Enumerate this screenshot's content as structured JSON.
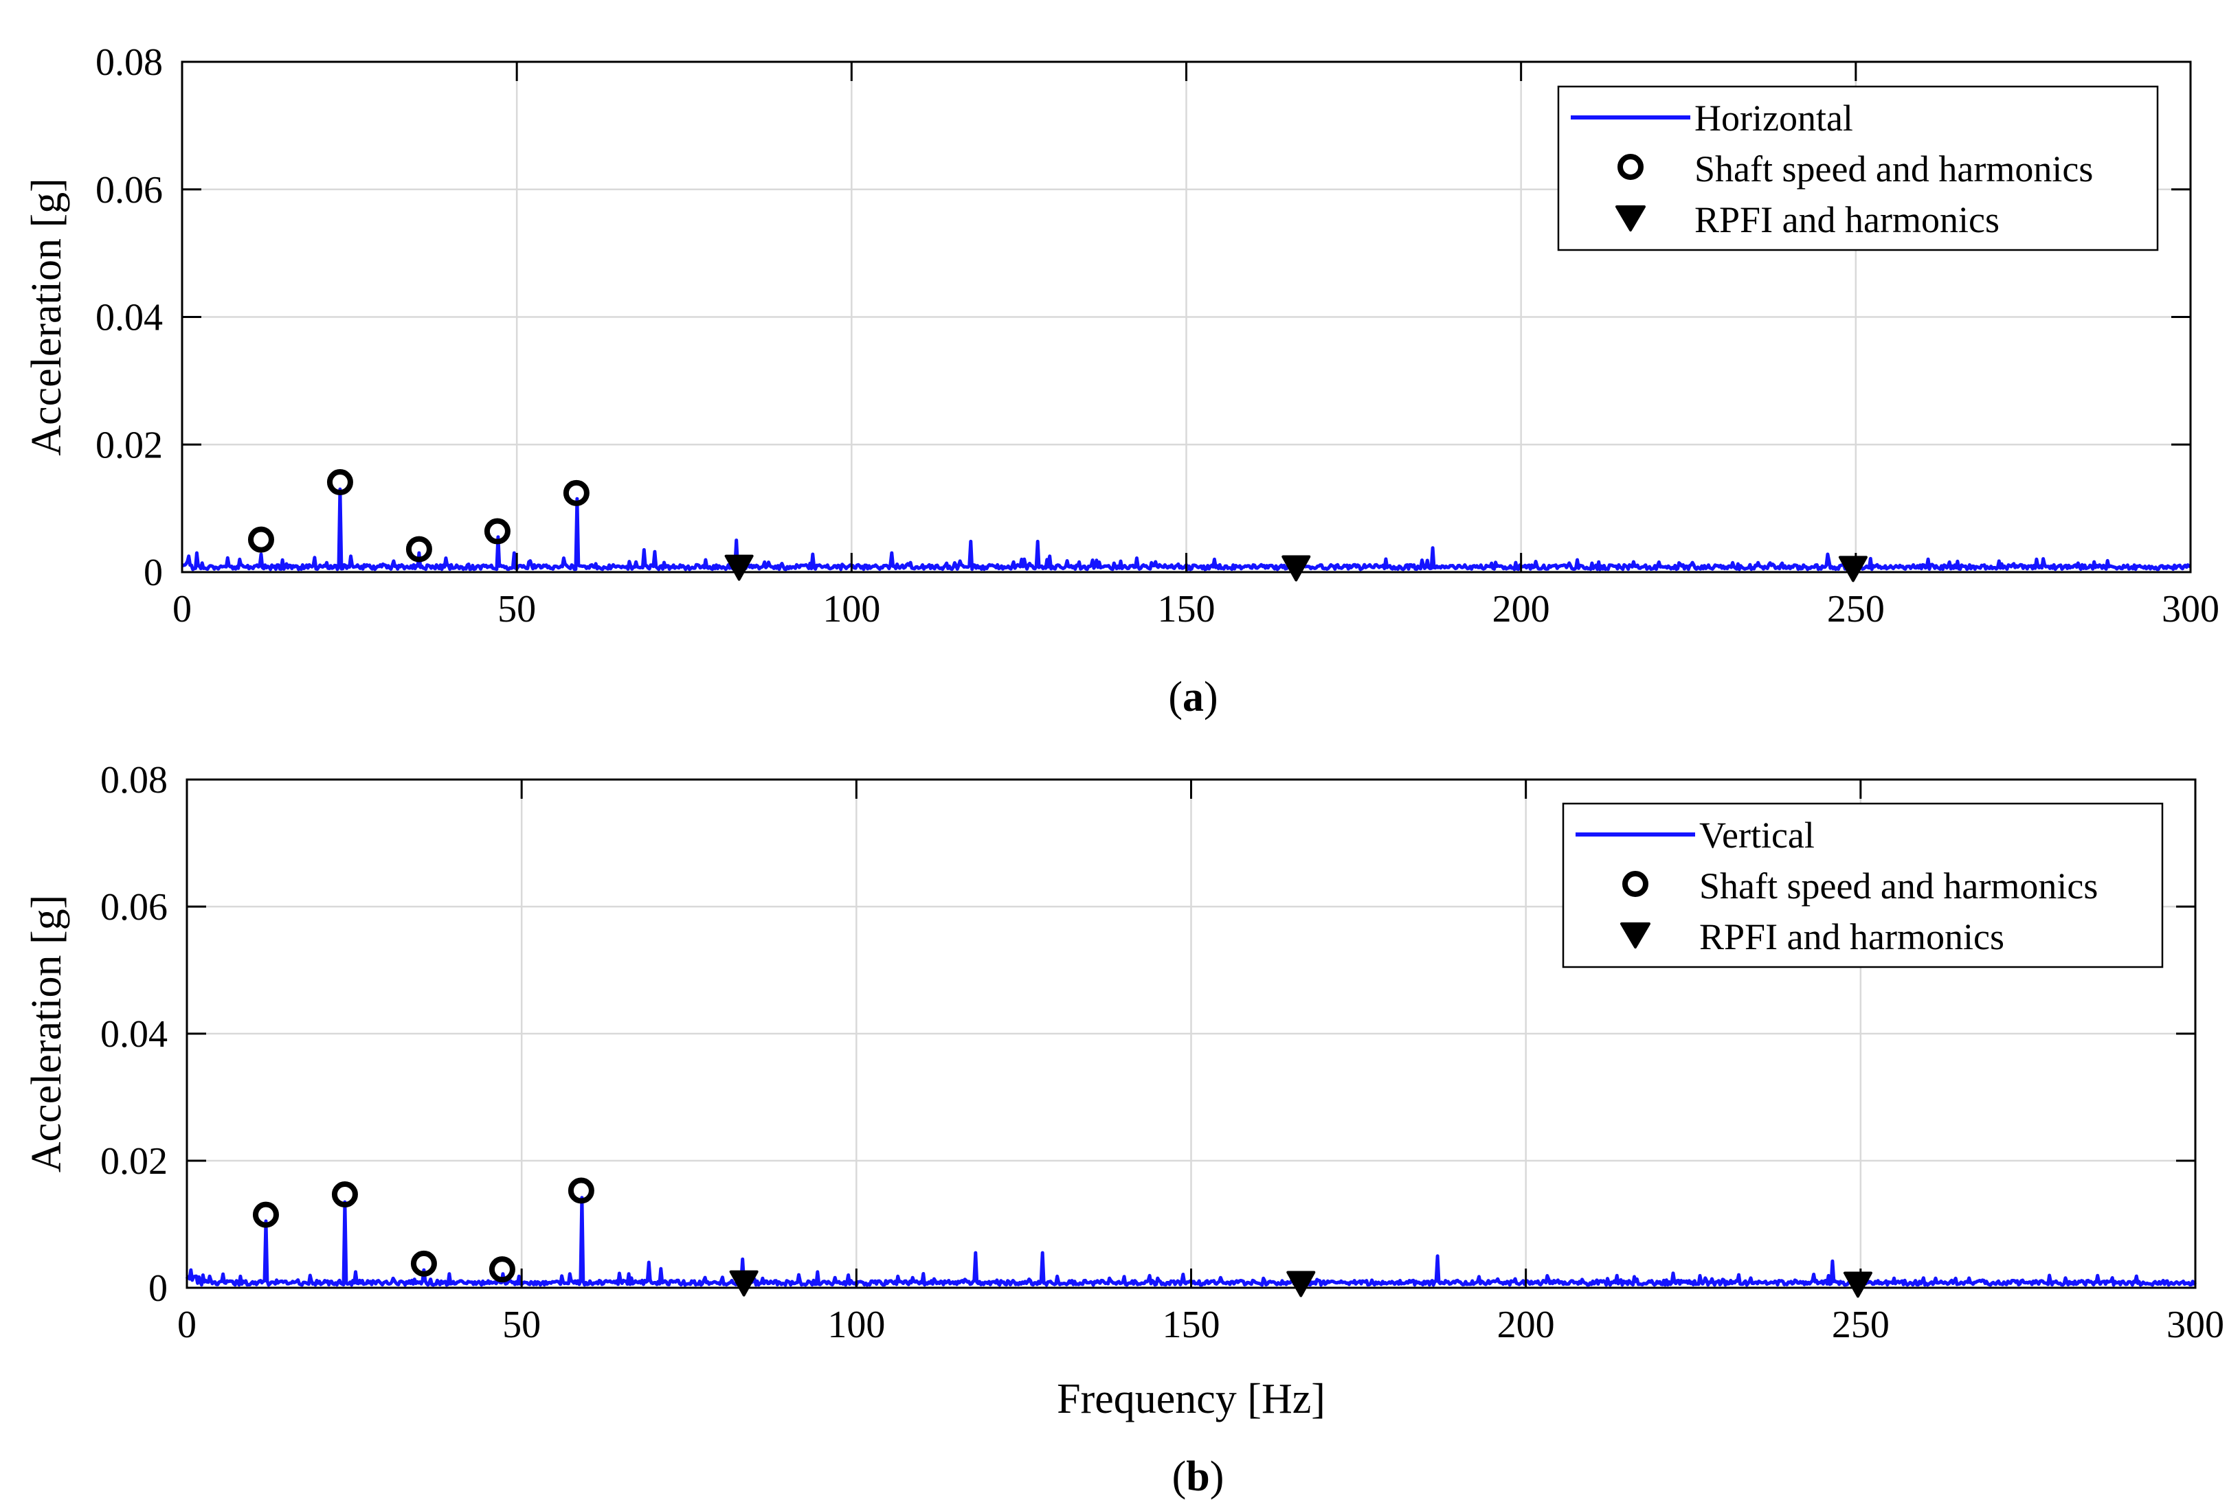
{
  "chart_data": [
    {
      "panel": "a",
      "caption": {
        "open": "(",
        "letter": "a",
        "close": ")"
      },
      "type": "line",
      "xlabel": "",
      "ylabel": "Acceleration [g]",
      "xlim": [
        0,
        300
      ],
      "ylim": [
        0,
        0.08
      ],
      "xticks": [
        0,
        50,
        100,
        150,
        200,
        250,
        300
      ],
      "xtick_labels": [
        "0",
        "50",
        "100",
        "150",
        "200",
        "250",
        "300"
      ],
      "yticks": [
        0,
        0.02,
        0.04,
        0.06,
        0.08
      ],
      "ytick_labels": [
        "0",
        "0.02",
        "0.04",
        "0.06",
        "0.08"
      ],
      "grid": true,
      "legend_position": "top-right",
      "colors": {
        "line": "#1414ff",
        "markers": "#000000",
        "grid": "#d9d9d9"
      },
      "series": [
        {
          "name": "Horizontal",
          "kind": "line",
          "baseline": 0.0008,
          "peaks": [
            [
              0.9,
              0.0025
            ],
            [
              2.1,
              0.003
            ],
            [
              8.5,
              0.002
            ],
            [
              11.8,
              0.0028
            ],
            [
              23.6,
              0.013
            ],
            [
              25.2,
              0.0025
            ],
            [
              35.4,
              0.003
            ],
            [
              39.5,
              0.0022
            ],
            [
              47.1,
              0.0055
            ],
            [
              49.5,
              0.003
            ],
            [
              57.0,
              0.0022
            ],
            [
              58.9,
              0.0115
            ],
            [
              69.0,
              0.0035
            ],
            [
              70.6,
              0.0032
            ],
            [
              82.8,
              0.005
            ],
            [
              94.3,
              0.0028
            ],
            [
              106.0,
              0.003
            ],
            [
              117.7,
              0.0048
            ],
            [
              127.8,
              0.0048
            ],
            [
              129.7,
              0.0025
            ],
            [
              142.5,
              0.0022
            ],
            [
              154.2,
              0.002
            ],
            [
              166.0,
              0.0018
            ],
            [
              186.8,
              0.0038
            ],
            [
              199.2,
              0.0015
            ],
            [
              210.5,
              0.0014
            ],
            [
              225.6,
              0.0015
            ],
            [
              239.0,
              0.0014
            ],
            [
              245.8,
              0.0028
            ],
            [
              249.8,
              0.0015
            ],
            [
              261.3,
              0.0012
            ],
            [
              285.7,
              0.0016
            ]
          ]
        },
        {
          "name": "Shaft speed and harmonics",
          "kind": "marker-circle",
          "x": [
            11.8,
            23.6,
            35.4,
            47.1,
            58.9
          ],
          "y": [
            0.0051,
            0.0141,
            0.0036,
            0.0064,
            0.0124
          ]
        },
        {
          "name": "RPFI and harmonics",
          "kind": "marker-triangle",
          "x": [
            83.2,
            166.4,
            249.6
          ],
          "y": [
            0.0008,
            0.0007,
            0.0006
          ]
        }
      ]
    },
    {
      "panel": "b",
      "caption": {
        "open": "(",
        "letter": "b",
        "close": ")"
      },
      "type": "line",
      "xlabel": "Frequency [Hz]",
      "ylabel": "Acceleration [g]",
      "xlim": [
        0,
        300
      ],
      "ylim": [
        0,
        0.08
      ],
      "xticks": [
        0,
        50,
        100,
        150,
        200,
        250,
        300
      ],
      "xtick_labels": [
        "0",
        "50",
        "100",
        "150",
        "200",
        "250",
        "300"
      ],
      "yticks": [
        0,
        0.02,
        0.04,
        0.06,
        0.08
      ],
      "ytick_labels": [
        "0",
        "0.02",
        "0.04",
        "0.06",
        "0.08"
      ],
      "grid": true,
      "legend_position": "top-right",
      "colors": {
        "line": "#1414ff",
        "markers": "#000000",
        "grid": "#d9d9d9"
      },
      "series": [
        {
          "name": "Vertical",
          "kind": "line",
          "baseline": 0.0008,
          "peaks": [
            [
              0.6,
              0.0028
            ],
            [
              2.4,
              0.002
            ],
            [
              8.0,
              0.0018
            ],
            [
              11.8,
              0.0105
            ],
            [
              23.6,
              0.0135
            ],
            [
              25.2,
              0.0025
            ],
            [
              35.4,
              0.0028
            ],
            [
              39.3,
              0.0022
            ],
            [
              47.1,
              0.0022
            ],
            [
              49.6,
              0.0018
            ],
            [
              57.2,
              0.0022
            ],
            [
              58.9,
              0.0142
            ],
            [
              68.9,
              0.004
            ],
            [
              70.7,
              0.003
            ],
            [
              83.0,
              0.0045
            ],
            [
              94.3,
              0.0025
            ],
            [
              98.7,
              0.002
            ],
            [
              106.2,
              0.0018
            ],
            [
              108.4,
              0.0016
            ],
            [
              117.7,
              0.0055
            ],
            [
              127.8,
              0.0055
            ],
            [
              130.0,
              0.0018
            ],
            [
              137.7,
              0.0015
            ],
            [
              145.0,
              0.0015
            ],
            [
              154.3,
              0.0016
            ],
            [
              166.3,
              0.0014
            ],
            [
              176.9,
              0.0012
            ],
            [
              186.8,
              0.005
            ],
            [
              198.5,
              0.0014
            ],
            [
              204.7,
              0.0012
            ],
            [
              210.7,
              0.0012
            ],
            [
              227.7,
              0.0014
            ],
            [
              240.1,
              0.0012
            ],
            [
              245.8,
              0.0042
            ],
            [
              251.0,
              0.0012
            ],
            [
              268.2,
              0.0012
            ],
            [
              288.0,
              0.001
            ]
          ]
        },
        {
          "name": "Shaft speed and harmonics",
          "kind": "marker-circle",
          "x": [
            11.8,
            23.6,
            35.4,
            47.1,
            58.9
          ],
          "y": [
            0.0115,
            0.0147,
            0.0038,
            0.0029,
            0.0153
          ]
        },
        {
          "name": "RPFI and harmonics",
          "kind": "marker-triangle",
          "x": [
            83.2,
            166.4,
            249.6
          ],
          "y": [
            0.0008,
            0.0007,
            0.0006
          ]
        }
      ]
    }
  ]
}
